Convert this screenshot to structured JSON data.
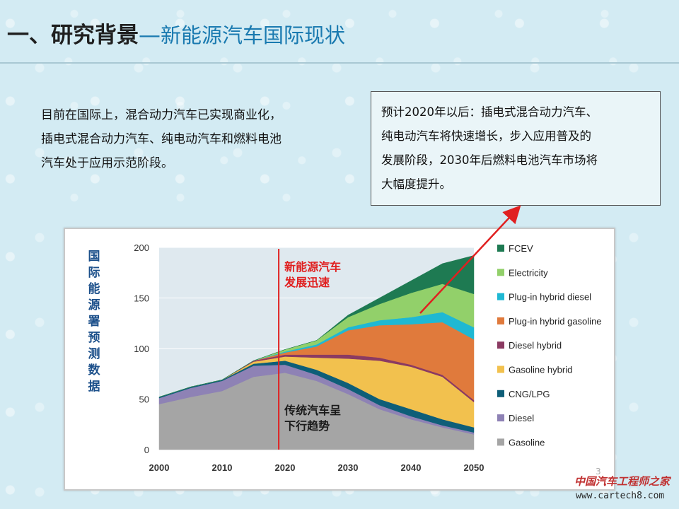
{
  "header": {
    "title_main": "一、研究背景",
    "title_dash": "—",
    "title_sub": "新能源汽车国际现状"
  },
  "intro_lines": [
    "目前在国际上，混合动力汽车已实现商业化，",
    "插电式混合动力汽车、纯电动汽车和燃料电池",
    "汽车处于应用示范阶段。"
  ],
  "callout_lines": [
    "预计2020年以后：插电式混合动力汽车、",
    "纯电动汽车将快速增长，步入应用普及的",
    "发展阶段，2030年后燃料电池汽车市场将",
    "大幅度提升。"
  ],
  "page_number": "3",
  "watermark": {
    "name": "中国汽车工程师之家",
    "url": "www.cartech8.com"
  },
  "colors": {
    "title_accent": "#1a7ab0",
    "annotation_red": "#e02020",
    "vertical_label": "#1b4f8a"
  },
  "chart_data": {
    "type": "area",
    "stacked": true,
    "ylabel": "国际能源署预测数据",
    "ylim": [
      0,
      200
    ],
    "yticks": [
      0,
      50,
      100,
      150,
      200
    ],
    "xlim": [
      2000,
      2050
    ],
    "xticks": [
      2000,
      2010,
      2020,
      2030,
      2040,
      2050
    ],
    "x": [
      2000,
      2005,
      2010,
      2015,
      2020,
      2025,
      2030,
      2035,
      2040,
      2045,
      2050
    ],
    "series": [
      {
        "name": "Gasoline",
        "color": "#a5a5a5",
        "values": [
          45,
          52,
          58,
          72,
          76,
          68,
          55,
          40,
          30,
          22,
          15
        ]
      },
      {
        "name": "Diesel",
        "color": "#8e82b5",
        "values": [
          6,
          9,
          10,
          11,
          8,
          6,
          5,
          4,
          3,
          2,
          2
        ]
      },
      {
        "name": "CNG/LPG",
        "color": "#0e5e78",
        "values": [
          1,
          1,
          1,
          2,
          4,
          5,
          6,
          6,
          7,
          6,
          5
        ]
      },
      {
        "name": "Gasoline hybrid",
        "color": "#f2c14e",
        "values": [
          0,
          0,
          0,
          2,
          4,
          12,
          24,
          38,
          42,
          42,
          25
        ]
      },
      {
        "name": "Diesel hybrid",
        "color": "#8b3a62",
        "values": [
          0,
          0,
          0,
          1,
          2,
          3,
          4,
          3,
          2,
          2,
          2
        ]
      },
      {
        "name": "Plug-in hybrid gasoline",
        "color": "#e07a3c",
        "values": [
          0,
          0,
          0,
          0,
          2,
          8,
          24,
          32,
          40,
          52,
          60
        ]
      },
      {
        "name": "Plug-in hybrid diesel",
        "color": "#1fb8d3",
        "values": [
          0,
          0,
          0,
          0,
          1,
          2,
          3,
          5,
          7,
          10,
          12
        ]
      },
      {
        "name": "Electricity",
        "color": "#92d06a",
        "values": [
          0,
          0,
          0,
          0,
          2,
          4,
          10,
          16,
          24,
          28,
          33
        ]
      },
      {
        "name": "FCEV",
        "color": "#1e7a52",
        "values": [
          0,
          0,
          0,
          0,
          0,
          0,
          2,
          6,
          12,
          20,
          38
        ]
      }
    ],
    "legend_order": [
      "FCEV",
      "Electricity",
      "Plug-in hybrid diesel",
      "Plug-in hybrid gasoline",
      "Diesel hybrid",
      "Gasoline hybrid",
      "CNG/LPG",
      "Diesel",
      "Gasoline"
    ],
    "marker_year": 2019,
    "annotations": [
      {
        "lines": [
          "新能源汽车",
          "发展迅速"
        ]
      },
      {
        "lines": [
          "传统汽车呈",
          "下行趋势"
        ]
      }
    ]
  }
}
